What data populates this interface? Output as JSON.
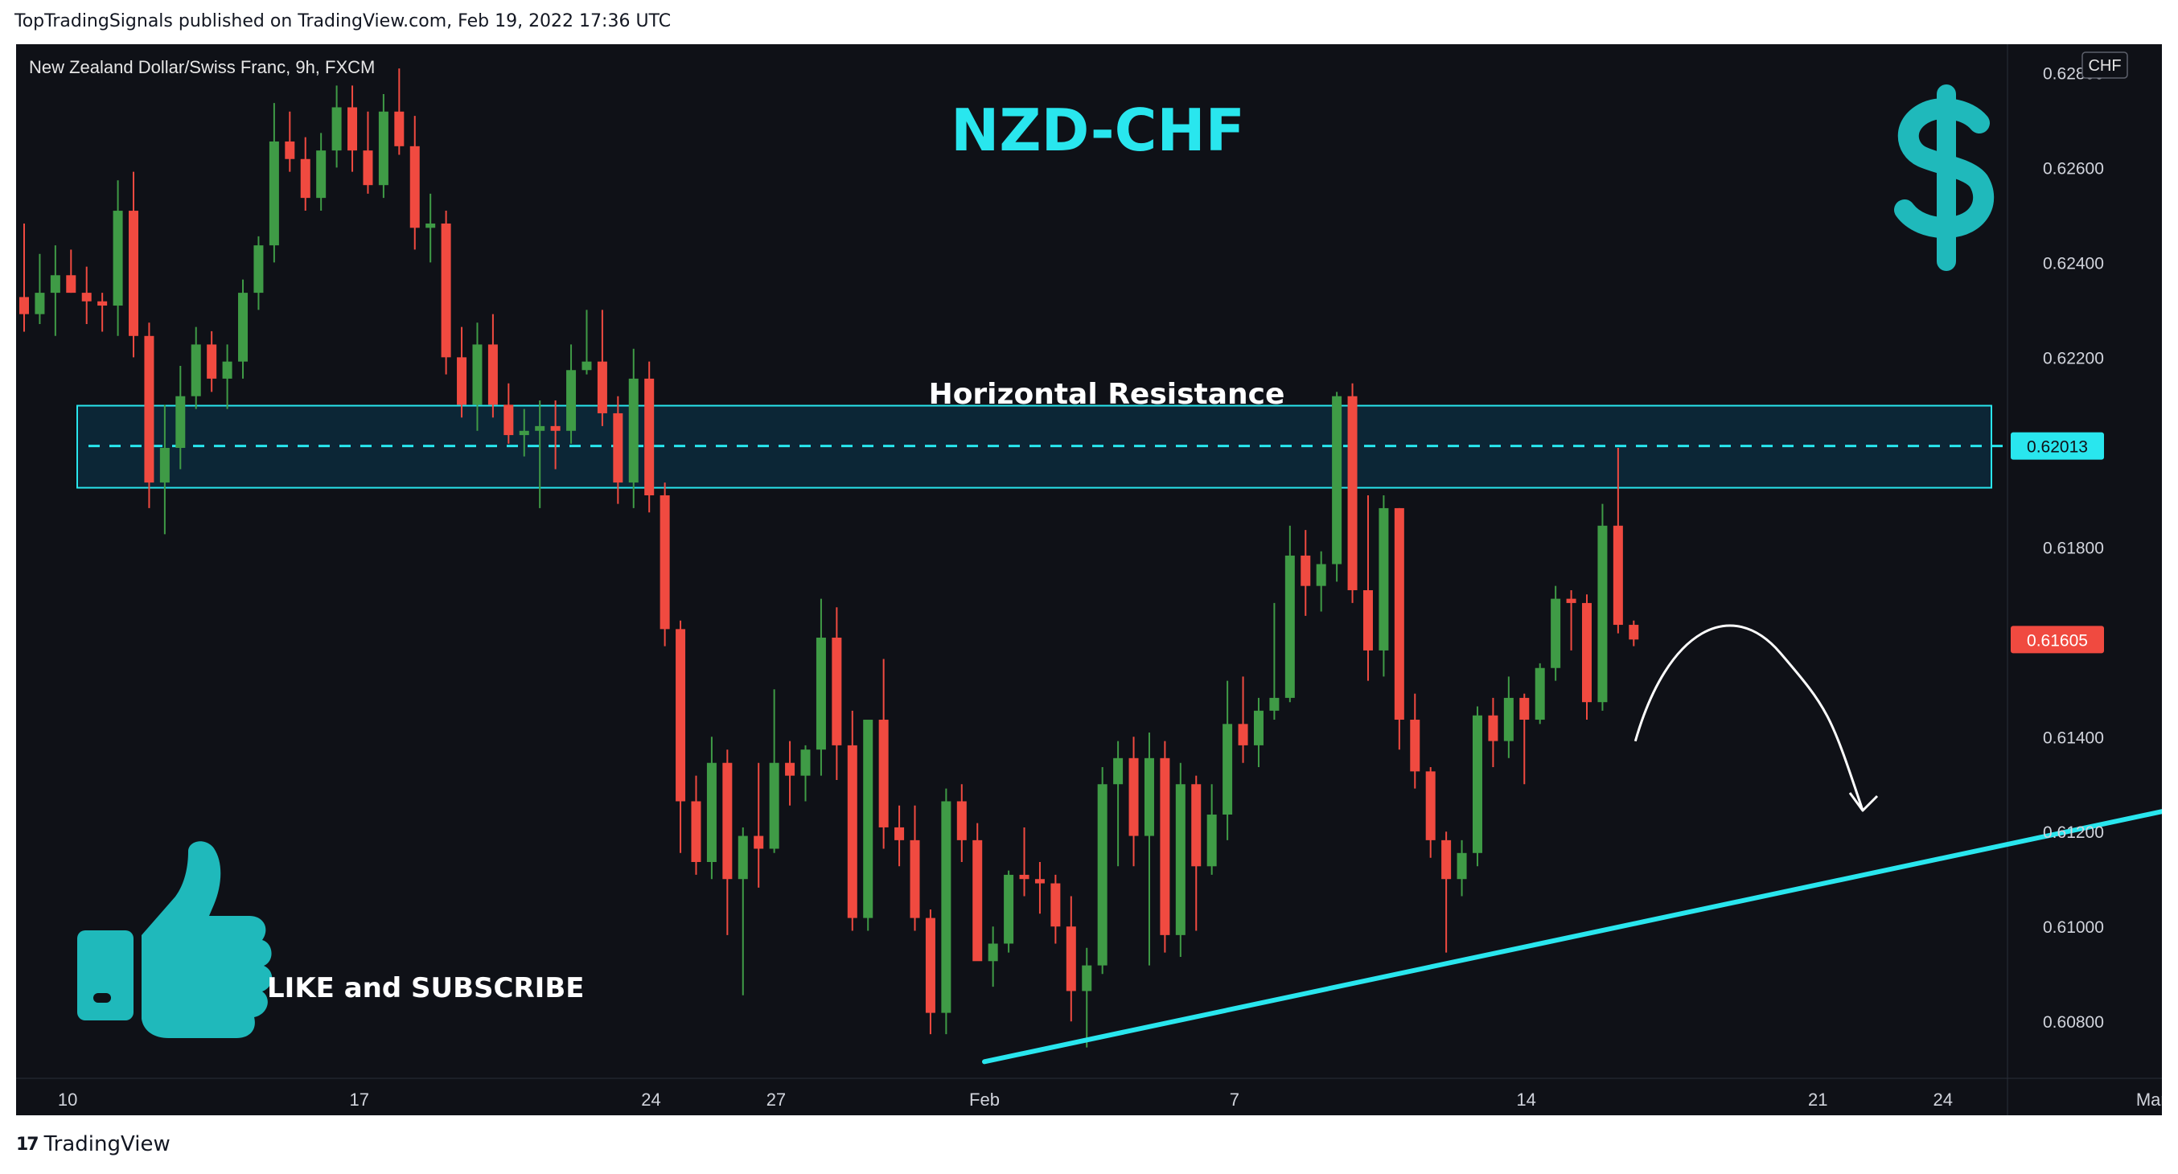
{
  "publisher_line": "TopTradingSignals published on TradingView.com, Feb 19, 2022 17:36 UTC",
  "footer": {
    "logo_icon": "tradingview-logo-icon",
    "brand": "TradingView"
  },
  "colors": {
    "background": "#0f1117",
    "up": "#26a69a",
    "up_body": "#3f9b46",
    "down": "#f04a40",
    "accent": "#29e6ee",
    "zone_fill": "#0c2a3c",
    "text": "#e6e6e6"
  },
  "chart_data": {
    "type": "candlestick",
    "symbol_label": "New Zealand Dollar/Swiss Franc, 9h, FXCM",
    "title": "NZD-CHF",
    "currency": "CHF",
    "y_ticks": [
      "0.62800",
      "0.62600",
      "0.62400",
      "0.62200",
      "0.62000",
      "0.61800",
      "0.61600",
      "0.61400",
      "0.61200",
      "0.61000",
      "0.60800"
    ],
    "x_ticks": [
      "10",
      "17",
      "24",
      "27",
      "Feb",
      "7",
      "14",
      "21",
      "24",
      "Mar"
    ],
    "ylim": [
      0.6068,
      0.6286
    ],
    "price_labels": {
      "resistance": "0.62013",
      "last": "0.61605"
    },
    "resistance_zone": {
      "label": "Horizontal Resistance",
      "top": 0.62098,
      "bottom": 0.61925,
      "level": 0.62013
    },
    "trendline": {
      "from": {
        "date": "2022-02-01",
        "price": 0.60715
      },
      "to": {
        "date": "2022-03-03",
        "price": 0.61275
      }
    },
    "projection": "down",
    "annotations": {
      "like_text": "LIKE and SUBSCRIBE",
      "like_icon": "thumbs-up-icon",
      "currency_icon": "dollar-sign-icon"
    },
    "candles": [
      {
        "o": 0.62327,
        "h": 0.62482,
        "l": 0.62254,
        "c": 0.62291
      },
      {
        "o": 0.62291,
        "h": 0.62418,
        "l": 0.6227,
        "c": 0.62336
      },
      {
        "o": 0.62336,
        "h": 0.62436,
        "l": 0.62245,
        "c": 0.62373
      },
      {
        "o": 0.62373,
        "h": 0.62427,
        "l": 0.62336,
        "c": 0.62336
      },
      {
        "o": 0.62336,
        "h": 0.62391,
        "l": 0.6227,
        "c": 0.62318
      },
      {
        "o": 0.62318,
        "h": 0.62336,
        "l": 0.62254,
        "c": 0.62309
      },
      {
        "o": 0.62309,
        "h": 0.62573,
        "l": 0.62245,
        "c": 0.62509
      },
      {
        "o": 0.62509,
        "h": 0.62591,
        "l": 0.622,
        "c": 0.62245
      },
      {
        "o": 0.62245,
        "h": 0.62273,
        "l": 0.61882,
        "c": 0.61936
      },
      {
        "o": 0.61936,
        "h": 0.621,
        "l": 0.61827,
        "c": 0.62009
      },
      {
        "o": 0.62009,
        "h": 0.62182,
        "l": 0.61964,
        "c": 0.62118
      },
      {
        "o": 0.62118,
        "h": 0.62264,
        "l": 0.62091,
        "c": 0.62227
      },
      {
        "o": 0.62227,
        "h": 0.62255,
        "l": 0.62127,
        "c": 0.62155
      },
      {
        "o": 0.62155,
        "h": 0.62227,
        "l": 0.62091,
        "c": 0.62191
      },
      {
        "o": 0.62191,
        "h": 0.62364,
        "l": 0.62155,
        "c": 0.62336
      },
      {
        "o": 0.62336,
        "h": 0.62455,
        "l": 0.623,
        "c": 0.62436
      },
      {
        "o": 0.62436,
        "h": 0.62736,
        "l": 0.624,
        "c": 0.62655
      },
      {
        "o": 0.62655,
        "h": 0.62718,
        "l": 0.62591,
        "c": 0.62618
      },
      {
        "o": 0.62618,
        "h": 0.62664,
        "l": 0.62509,
        "c": 0.62536
      },
      {
        "o": 0.62536,
        "h": 0.62673,
        "l": 0.62509,
        "c": 0.62636
      },
      {
        "o": 0.62636,
        "h": 0.62773,
        "l": 0.626,
        "c": 0.62727
      },
      {
        "o": 0.62727,
        "h": 0.62773,
        "l": 0.62591,
        "c": 0.62636
      },
      {
        "o": 0.62636,
        "h": 0.62718,
        "l": 0.62545,
        "c": 0.62563
      },
      {
        "o": 0.62563,
        "h": 0.62755,
        "l": 0.62536,
        "c": 0.62718
      },
      {
        "o": 0.62718,
        "h": 0.62809,
        "l": 0.62627,
        "c": 0.62645
      },
      {
        "o": 0.62645,
        "h": 0.62709,
        "l": 0.62427,
        "c": 0.62473
      },
      {
        "o": 0.62473,
        "h": 0.62545,
        "l": 0.624,
        "c": 0.62482
      },
      {
        "o": 0.62482,
        "h": 0.62509,
        "l": 0.62164,
        "c": 0.622
      },
      {
        "o": 0.622,
        "h": 0.62264,
        "l": 0.62073,
        "c": 0.621
      },
      {
        "o": 0.621,
        "h": 0.62273,
        "l": 0.62045,
        "c": 0.62227
      },
      {
        "o": 0.62227,
        "h": 0.62291,
        "l": 0.62073,
        "c": 0.621
      },
      {
        "o": 0.621,
        "h": 0.62145,
        "l": 0.62018,
        "c": 0.62036
      },
      {
        "o": 0.62036,
        "h": 0.62091,
        "l": 0.61991,
        "c": 0.62045
      },
      {
        "o": 0.62045,
        "h": 0.62109,
        "l": 0.61882,
        "c": 0.62055
      },
      {
        "o": 0.62055,
        "h": 0.62109,
        "l": 0.61964,
        "c": 0.62045
      },
      {
        "o": 0.62045,
        "h": 0.62227,
        "l": 0.62018,
        "c": 0.62173
      },
      {
        "o": 0.62173,
        "h": 0.623,
        "l": 0.62164,
        "c": 0.62191
      },
      {
        "o": 0.62191,
        "h": 0.623,
        "l": 0.62055,
        "c": 0.62082
      },
      {
        "o": 0.62082,
        "h": 0.62118,
        "l": 0.61891,
        "c": 0.61936
      },
      {
        "o": 0.61936,
        "h": 0.62218,
        "l": 0.61882,
        "c": 0.62155
      },
      {
        "o": 0.62155,
        "h": 0.62191,
        "l": 0.61873,
        "c": 0.61909
      },
      {
        "o": 0.61909,
        "h": 0.61936,
        "l": 0.61591,
        "c": 0.61627
      },
      {
        "o": 0.61627,
        "h": 0.61645,
        "l": 0.61155,
        "c": 0.61264
      },
      {
        "o": 0.61264,
        "h": 0.61318,
        "l": 0.61109,
        "c": 0.61136
      },
      {
        "o": 0.61136,
        "h": 0.614,
        "l": 0.611,
        "c": 0.61345
      },
      {
        "o": 0.61345,
        "h": 0.61373,
        "l": 0.60982,
        "c": 0.611
      },
      {
        "o": 0.611,
        "h": 0.61209,
        "l": 0.60855,
        "c": 0.61191
      },
      {
        "o": 0.61191,
        "h": 0.61345,
        "l": 0.61082,
        "c": 0.61164
      },
      {
        "o": 0.61164,
        "h": 0.615,
        "l": 0.61155,
        "c": 0.61345
      },
      {
        "o": 0.61345,
        "h": 0.61391,
        "l": 0.61255,
        "c": 0.61318
      },
      {
        "o": 0.61318,
        "h": 0.61382,
        "l": 0.61264,
        "c": 0.61373
      },
      {
        "o": 0.61373,
        "h": 0.61691,
        "l": 0.61318,
        "c": 0.61609
      },
      {
        "o": 0.61609,
        "h": 0.61673,
        "l": 0.61309,
        "c": 0.61382
      },
      {
        "o": 0.61382,
        "h": 0.61455,
        "l": 0.60991,
        "c": 0.61018
      },
      {
        "o": 0.61018,
        "h": 0.61427,
        "l": 0.60991,
        "c": 0.61436
      },
      {
        "o": 0.61436,
        "h": 0.61564,
        "l": 0.61164,
        "c": 0.61209
      },
      {
        "o": 0.61209,
        "h": 0.61255,
        "l": 0.61127,
        "c": 0.61182
      },
      {
        "o": 0.61182,
        "h": 0.61255,
        "l": 0.60991,
        "c": 0.61018
      },
      {
        "o": 0.61018,
        "h": 0.61036,
        "l": 0.60773,
        "c": 0.60818
      },
      {
        "o": 0.60818,
        "h": 0.61291,
        "l": 0.60773,
        "c": 0.61264
      },
      {
        "o": 0.61264,
        "h": 0.613,
        "l": 0.61136,
        "c": 0.61182
      },
      {
        "o": 0.61182,
        "h": 0.61218,
        "l": 0.60945,
        "c": 0.60927
      },
      {
        "o": 0.60927,
        "h": 0.61,
        "l": 0.60873,
        "c": 0.60964
      },
      {
        "o": 0.60964,
        "h": 0.61118,
        "l": 0.60945,
        "c": 0.61109
      },
      {
        "o": 0.61109,
        "h": 0.61209,
        "l": 0.61064,
        "c": 0.611
      },
      {
        "o": 0.611,
        "h": 0.61136,
        "l": 0.61027,
        "c": 0.61091
      },
      {
        "o": 0.61091,
        "h": 0.61109,
        "l": 0.60964,
        "c": 0.61
      },
      {
        "o": 0.61,
        "h": 0.61064,
        "l": 0.608,
        "c": 0.60864
      },
      {
        "o": 0.60864,
        "h": 0.60955,
        "l": 0.60745,
        "c": 0.60918
      },
      {
        "o": 0.60918,
        "h": 0.61336,
        "l": 0.609,
        "c": 0.613
      },
      {
        "o": 0.613,
        "h": 0.61391,
        "l": 0.61127,
        "c": 0.61355
      },
      {
        "o": 0.61355,
        "h": 0.614,
        "l": 0.61127,
        "c": 0.61191
      },
      {
        "o": 0.61191,
        "h": 0.61409,
        "l": 0.60918,
        "c": 0.61355
      },
      {
        "o": 0.61355,
        "h": 0.61391,
        "l": 0.60945,
        "c": 0.60982
      },
      {
        "o": 0.60982,
        "h": 0.61345,
        "l": 0.60936,
        "c": 0.613
      },
      {
        "o": 0.613,
        "h": 0.61318,
        "l": 0.60991,
        "c": 0.61127
      },
      {
        "o": 0.61127,
        "h": 0.613,
        "l": 0.61109,
        "c": 0.61236
      },
      {
        "o": 0.61236,
        "h": 0.61518,
        "l": 0.61182,
        "c": 0.61427
      },
      {
        "o": 0.61427,
        "h": 0.61527,
        "l": 0.61345,
        "c": 0.61382
      },
      {
        "o": 0.61382,
        "h": 0.61482,
        "l": 0.61336,
        "c": 0.61455
      },
      {
        "o": 0.61455,
        "h": 0.61682,
        "l": 0.61436,
        "c": 0.61482
      },
      {
        "o": 0.61482,
        "h": 0.61845,
        "l": 0.61473,
        "c": 0.61782
      },
      {
        "o": 0.61782,
        "h": 0.61836,
        "l": 0.61655,
        "c": 0.61718
      },
      {
        "o": 0.61718,
        "h": 0.61791,
        "l": 0.61664,
        "c": 0.61764
      },
      {
        "o": 0.61764,
        "h": 0.62127,
        "l": 0.61727,
        "c": 0.62118
      },
      {
        "o": 0.62118,
        "h": 0.62145,
        "l": 0.61682,
        "c": 0.61709
      },
      {
        "o": 0.61709,
        "h": 0.61909,
        "l": 0.61518,
        "c": 0.61582
      },
      {
        "o": 0.61582,
        "h": 0.61909,
        "l": 0.61527,
        "c": 0.61882
      },
      {
        "o": 0.61882,
        "h": 0.61882,
        "l": 0.61373,
        "c": 0.61436
      },
      {
        "o": 0.61436,
        "h": 0.61491,
        "l": 0.61291,
        "c": 0.61327
      },
      {
        "o": 0.61327,
        "h": 0.61336,
        "l": 0.61145,
        "c": 0.61182
      },
      {
        "o": 0.61182,
        "h": 0.612,
        "l": 0.60945,
        "c": 0.611
      },
      {
        "o": 0.611,
        "h": 0.61182,
        "l": 0.61064,
        "c": 0.61155
      },
      {
        "o": 0.61155,
        "h": 0.61464,
        "l": 0.61127,
        "c": 0.61445
      },
      {
        "o": 0.61445,
        "h": 0.61482,
        "l": 0.61336,
        "c": 0.61391
      },
      {
        "o": 0.61391,
        "h": 0.61527,
        "l": 0.61355,
        "c": 0.61482
      },
      {
        "o": 0.61482,
        "h": 0.61491,
        "l": 0.613,
        "c": 0.61436
      },
      {
        "o": 0.61436,
        "h": 0.61555,
        "l": 0.61427,
        "c": 0.61545
      },
      {
        "o": 0.61545,
        "h": 0.61718,
        "l": 0.61518,
        "c": 0.61691
      },
      {
        "o": 0.61691,
        "h": 0.61709,
        "l": 0.61582,
        "c": 0.61682
      },
      {
        "o": 0.61682,
        "h": 0.617,
        "l": 0.61436,
        "c": 0.61473
      },
      {
        "o": 0.61473,
        "h": 0.61891,
        "l": 0.61455,
        "c": 0.61845
      },
      {
        "o": 0.61845,
        "h": 0.62009,
        "l": 0.61618,
        "c": 0.61636
      },
      {
        "o": 0.61636,
        "h": 0.61645,
        "l": 0.61591,
        "c": 0.61605
      }
    ]
  }
}
